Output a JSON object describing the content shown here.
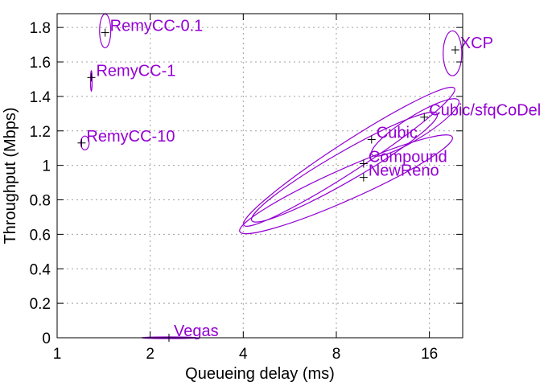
{
  "chart_data": {
    "type": "scatter",
    "xlabel": "Queueing delay (ms)",
    "ylabel": "Throughput (Mbps)",
    "xscale": "log2",
    "xlim": [
      1,
      20.5
    ],
    "ylim": [
      0,
      1.88
    ],
    "xticks": [
      1,
      2,
      4,
      8,
      16
    ],
    "xtick_labels": [
      "1",
      "2",
      "4",
      "8",
      "16"
    ],
    "yticks": [
      0,
      0.2,
      0.4,
      0.6,
      0.8,
      1.0,
      1.2,
      1.4,
      1.6,
      1.8
    ],
    "ytick_labels": [
      "0",
      "0.2",
      "0.4",
      "0.6",
      "0.8",
      "1",
      "1.2",
      "1.4",
      "1.6",
      "1.8"
    ],
    "grid": true,
    "point_color": "#000000",
    "label_color": "#9400d3",
    "ellipse_color": "#9400d3",
    "points": [
      {
        "label": "RemyCC-0.1",
        "x": 1.43,
        "y": 1.77,
        "ellipse": {
          "cx": 1.43,
          "cy": 1.78,
          "rx_log2": 0.06,
          "ry": 0.098,
          "angle_deg": 0
        }
      },
      {
        "label": "RemyCC-1",
        "x": 1.29,
        "y": 1.51,
        "ellipse": {
          "cx": 1.29,
          "cy": 1.49,
          "rx_log2": 0.005,
          "ry": 0.06,
          "angle_deg": 0
        }
      },
      {
        "label": "RemyCC-10",
        "x": 1.2,
        "y": 1.13,
        "ellipse": {
          "cx": 1.23,
          "cy": 1.13,
          "rx_log2": 0.045,
          "ry": 0.04,
          "angle_deg": 0
        }
      },
      {
        "label": "XCP",
        "x": 19.4,
        "y": 1.67,
        "ellipse": {
          "cx": 19.0,
          "cy": 1.65,
          "rx_log2": 0.1,
          "ry": 0.13,
          "angle_deg": 0
        }
      },
      {
        "label": "Cubic/sfqCoDel",
        "x": 15.4,
        "y": 1.28,
        "ellipse": {
          "cx": 14.4,
          "cy": 1.22,
          "rx_log2": 0.55,
          "ry": 0.065,
          "angle_deg": -32
        }
      },
      {
        "label": "Cubic",
        "x": 10.4,
        "y": 1.15,
        "ellipse": {
          "cx": 8.8,
          "cy": 1.05,
          "rx_log2": 1.35,
          "ry": 0.085,
          "angle_deg": -33
        }
      },
      {
        "label": "Compound",
        "x": 9.8,
        "y": 1.01,
        "ellipse": {
          "cx": 8.5,
          "cy": 0.99,
          "rx_log2": 1.15,
          "ry": 0.085,
          "angle_deg": -30
        }
      },
      {
        "label": "NewReno",
        "x": 9.8,
        "y": 0.93,
        "ellipse": {
          "cx": 8.6,
          "cy": 0.89,
          "rx_log2": 1.25,
          "ry": 0.09,
          "angle_deg": -24
        }
      },
      {
        "label": "Vegas",
        "x": 2.3,
        "y": 0.0,
        "ellipse": {
          "cx": 2.3,
          "cy": 0.0,
          "rx_log2": 0.3,
          "ry": 0.004,
          "angle_deg": 0
        }
      }
    ]
  }
}
